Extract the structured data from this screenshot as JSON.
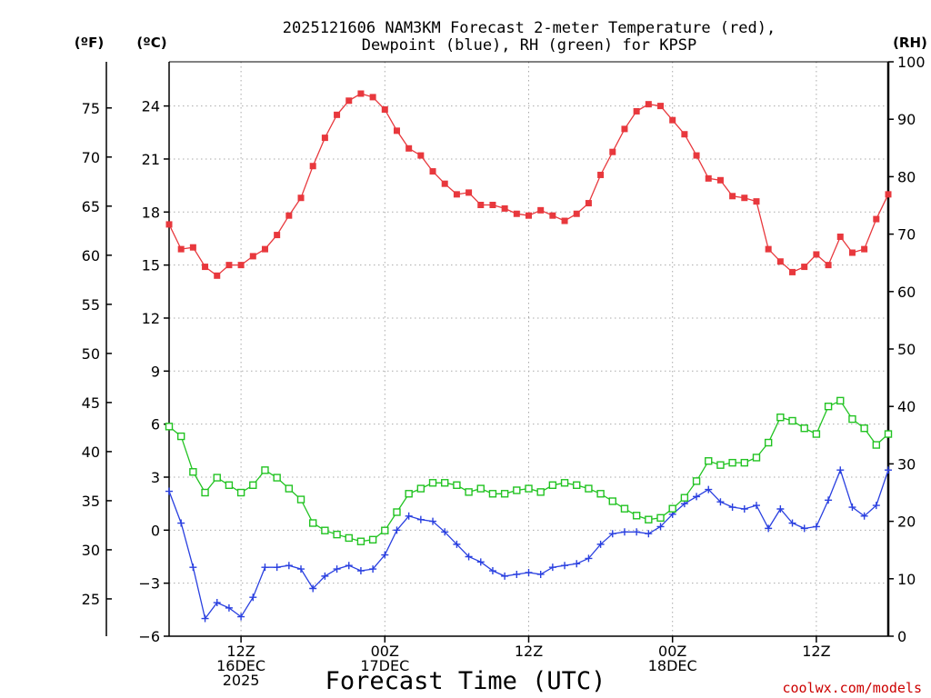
{
  "chart_data": {
    "type": "line",
    "title_line1": "2025121606 NAM3KM Forecast 2-meter Temperature (red),",
    "title_line2": "Dewpoint (blue), RH (green) for KPSP",
    "xlabel": "Forecast Time (UTC)",
    "credit": "coolwx.com/models",
    "unit_f": "(ºF)",
    "unit_c": "(ºC)",
    "unit_rh": "(RH)",
    "forecast_hours": [
      0,
      1,
      2,
      3,
      4,
      5,
      6,
      7,
      8,
      9,
      10,
      11,
      12,
      13,
      14,
      15,
      16,
      17,
      18,
      19,
      20,
      21,
      22,
      23,
      24,
      25,
      26,
      27,
      28,
      29,
      30,
      31,
      32,
      33,
      34,
      35,
      36,
      37,
      38,
      39,
      40,
      41,
      42,
      43,
      44,
      45,
      46,
      47,
      48,
      49,
      50,
      51,
      52,
      53,
      54,
      55,
      56,
      57,
      58,
      59,
      60
    ],
    "x_range_hours": [
      0,
      60
    ],
    "x_ticks": [
      {
        "hour": 6,
        "lines": [
          "12Z",
          "16DEC",
          "2025"
        ]
      },
      {
        "hour": 18,
        "lines": [
          "00Z",
          "17DEC"
        ]
      },
      {
        "hour": 30,
        "lines": [
          "12Z"
        ]
      },
      {
        "hour": 42,
        "lines": [
          "00Z",
          "18DEC"
        ]
      },
      {
        "hour": 54,
        "lines": [
          "12Z"
        ]
      }
    ],
    "ylim_c": [
      -6,
      26.5
    ],
    "yticks_c": [
      -6,
      -3,
      0,
      3,
      6,
      9,
      12,
      15,
      18,
      21,
      24
    ],
    "yticks_f": [
      25,
      30,
      35,
      40,
      45,
      50,
      55,
      60,
      65,
      70,
      75
    ],
    "ylim_rh": [
      0,
      100
    ],
    "yticks_rh": [
      0,
      10,
      20,
      30,
      40,
      50,
      60,
      70,
      80,
      90,
      100
    ],
    "grid": true,
    "series": [
      {
        "name": "Temperature",
        "axis": "c",
        "color": "#e8383d",
        "marker": "filled-square",
        "values": [
          17.3,
          15.9,
          16.0,
          14.9,
          14.4,
          15.0,
          15.0,
          15.5,
          15.9,
          16.7,
          17.8,
          18.8,
          20.6,
          22.2,
          23.5,
          24.3,
          24.7,
          24.5,
          23.8,
          22.6,
          21.6,
          21.2,
          20.3,
          19.6,
          19.0,
          19.1,
          18.4,
          18.4,
          18.2,
          17.9,
          17.8,
          18.1,
          17.8,
          17.5,
          17.9,
          18.5,
          20.1,
          21.4,
          22.7,
          23.7,
          24.1,
          24.0,
          23.2,
          22.4,
          21.2,
          19.9,
          19.8,
          18.9,
          18.8,
          18.6,
          15.9,
          15.2,
          14.6,
          14.9,
          15.6,
          15.0,
          16.6,
          15.7,
          15.9,
          17.6,
          19.0
        ]
      },
      {
        "name": "Dewpoint",
        "axis": "c",
        "color": "#2a40e0",
        "marker": "plus",
        "values": [
          2.2,
          0.4,
          -2.1,
          -5.0,
          -4.1,
          -4.4,
          -4.9,
          -3.8,
          -2.1,
          -2.1,
          -2.0,
          -2.2,
          -3.3,
          -2.6,
          -2.2,
          -2.0,
          -2.3,
          -2.2,
          -1.4,
          0.0,
          0.8,
          0.6,
          0.5,
          -0.1,
          -0.8,
          -1.5,
          -1.8,
          -2.3,
          -2.6,
          -2.5,
          -2.4,
          -2.5,
          -2.1,
          -2.0,
          -1.9,
          -1.6,
          -0.8,
          -0.2,
          -0.1,
          -0.1,
          -0.2,
          0.2,
          0.9,
          1.5,
          1.9,
          2.3,
          1.6,
          1.3,
          1.2,
          1.4,
          0.1,
          1.2,
          0.4,
          0.1,
          0.2,
          1.7,
          3.4,
          1.3,
          0.8,
          1.4,
          3.4
        ]
      },
      {
        "name": "RH",
        "axis": "rh",
        "color": "#22c322",
        "marker": "open-square",
        "values": [
          36.5,
          34.8,
          28.6,
          25.0,
          27.6,
          26.3,
          25.0,
          26.3,
          28.9,
          27.6,
          25.7,
          23.8,
          19.7,
          18.4,
          17.7,
          17.1,
          16.5,
          16.8,
          18.4,
          21.6,
          24.8,
          25.7,
          26.7,
          26.7,
          26.3,
          25.1,
          25.7,
          24.8,
          24.8,
          25.4,
          25.7,
          25.1,
          26.3,
          26.7,
          26.3,
          25.7,
          24.8,
          23.5,
          22.2,
          21.0,
          20.3,
          20.6,
          22.2,
          24.1,
          27.0,
          30.5,
          29.8,
          30.2,
          30.2,
          31.1,
          33.7,
          38.1,
          37.5,
          36.2,
          35.2,
          40.0,
          41.0,
          37.8,
          36.2,
          33.3,
          35.2
        ]
      }
    ]
  }
}
